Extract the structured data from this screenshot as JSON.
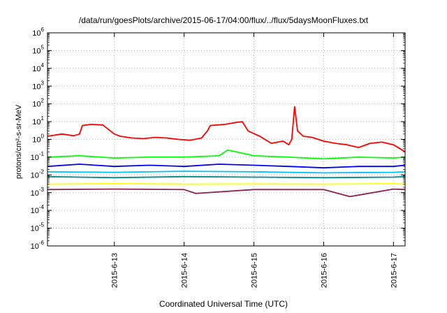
{
  "chart_data": {
    "type": "line",
    "title": "/data/run/goesPlots/archive/2015-06-17/04:00/flux/../flux/5daysMoonFluxes.txt",
    "xlabel": "Coordinated Universal Time (UTC)",
    "ylabel": "protons/cm²-s-sr-MeV",
    "y_scale": "log",
    "ylim": [
      1e-06,
      1000000.0
    ],
    "xlim": [
      "2015-06-12T01:00",
      "2015-06-17T04:00"
    ],
    "x_ticks": [
      "2015-6-13",
      "2015-6-14",
      "2015-6-15",
      "2015-6-16",
      "2015-6-17"
    ],
    "y_ticks": [
      "1e-6",
      "1e-5",
      "1e-4",
      "1e-3",
      "1e-2",
      "1e-1",
      "1e0",
      "1e1",
      "1e2",
      "1e3",
      "1e4",
      "1e5",
      "1e6"
    ],
    "grid": true,
    "series": [
      {
        "color": "#ff0000",
        "x": [
          "2015-06-12T01:00",
          "2015-06-12T06:00",
          "2015-06-12T10:00",
          "2015-06-12T12:00",
          "2015-06-12T13:00",
          "2015-06-12T16:00",
          "2015-06-12T20:00",
          "2015-06-13T00:00",
          "2015-06-13T02:00",
          "2015-06-13T06:00",
          "2015-06-13T10:00",
          "2015-06-13T14:00",
          "2015-06-13T18:00",
          "2015-06-13T22:00",
          "2015-06-14T02:00",
          "2015-06-14T06:00",
          "2015-06-14T08:00",
          "2015-06-14T09:00",
          "2015-06-14T14:00",
          "2015-06-14T18:00",
          "2015-06-14T20:00",
          "2015-06-14T22:00",
          "2015-06-15T02:00",
          "2015-06-15T06:00",
          "2015-06-15T10:00",
          "2015-06-15T12:00",
          "2015-06-15T13:00",
          "2015-06-15T14:00",
          "2015-06-15T15:00",
          "2015-06-15T17:00",
          "2015-06-15T20:00",
          "2015-06-16T00:00",
          "2015-06-16T04:00",
          "2015-06-16T08:00",
          "2015-06-16T12:00",
          "2015-06-16T16:00",
          "2015-06-16T20:00",
          "2015-06-17T00:00",
          "2015-06-17T04:00"
        ],
        "y": [
          1.5,
          2,
          1.6,
          2,
          6,
          7,
          6.5,
          2,
          1.5,
          1.2,
          1.1,
          1.3,
          1.2,
          1,
          0.9,
          1.2,
          3,
          6,
          7,
          9,
          10,
          3,
          1.5,
          0.6,
          0.8,
          0.5,
          1,
          70,
          3,
          1.5,
          1.3,
          0.8,
          0.6,
          0.5,
          0.35,
          0.6,
          0.7,
          0.5,
          0.2
        ]
      },
      {
        "color": "#00ff00",
        "x": [
          "2015-06-12T01:00",
          "2015-06-12T12:00",
          "2015-06-13T00:00",
          "2015-06-13T12:00",
          "2015-06-14T00:00",
          "2015-06-14T12:00",
          "2015-06-14T15:00",
          "2015-06-15T00:00",
          "2015-06-15T12:00",
          "2015-06-16T00:00",
          "2015-06-16T12:00",
          "2015-06-17T00:00",
          "2015-06-17T04:00"
        ],
        "y": [
          0.1,
          0.12,
          0.09,
          0.1,
          0.1,
          0.12,
          0.25,
          0.12,
          0.1,
          0.08,
          0.1,
          0.09,
          0.1
        ]
      },
      {
        "color": "#0000ff",
        "x": [
          "2015-06-12T01:00",
          "2015-06-12T12:00",
          "2015-06-13T00:00",
          "2015-06-13T12:00",
          "2015-06-14T00:00",
          "2015-06-14T12:00",
          "2015-06-15T00:00",
          "2015-06-15T12:00",
          "2015-06-16T00:00",
          "2015-06-16T12:00",
          "2015-06-17T00:00",
          "2015-06-17T04:00"
        ],
        "y": [
          0.03,
          0.04,
          0.03,
          0.035,
          0.03,
          0.04,
          0.035,
          0.03,
          0.025,
          0.03,
          0.03,
          0.035
        ]
      },
      {
        "color": "#00bfff",
        "x": [
          "2015-06-12T01:00",
          "2015-06-13T00:00",
          "2015-06-14T00:00",
          "2015-06-15T00:00",
          "2015-06-16T00:00",
          "2015-06-17T00:00",
          "2015-06-17T04:00"
        ],
        "y": [
          0.015,
          0.014,
          0.016,
          0.015,
          0.013,
          0.014,
          0.015
        ]
      },
      {
        "color": "#008b8b",
        "x": [
          "2015-06-12T01:00",
          "2015-06-13T00:00",
          "2015-06-14T00:00",
          "2015-06-15T00:00",
          "2015-06-16T00:00",
          "2015-06-17T00:00",
          "2015-06-17T04:00"
        ],
        "y": [
          0.008,
          0.007,
          0.008,
          0.0075,
          0.007,
          0.0075,
          0.008
        ]
      },
      {
        "color": "#ffff00",
        "x": [
          "2015-06-12T01:00",
          "2015-06-13T00:00",
          "2015-06-14T00:00",
          "2015-06-15T00:00",
          "2015-06-16T00:00",
          "2015-06-17T00:00",
          "2015-06-17T04:00"
        ],
        "y": [
          0.003,
          0.0032,
          0.003,
          0.0031,
          0.003,
          0.0032,
          0.003
        ]
      },
      {
        "color": "#8b2252",
        "x": [
          "2015-06-12T01:00",
          "2015-06-13T00:00",
          "2015-06-14T00:00",
          "2015-06-14T04:00",
          "2015-06-15T00:00",
          "2015-06-16T00:00",
          "2015-06-16T09:00",
          "2015-06-17T00:00",
          "2015-06-17T04:00"
        ],
        "y": [
          0.0015,
          0.0016,
          0.0015,
          0.0009,
          0.0015,
          0.0015,
          0.0006,
          0.0016,
          0.0015
        ]
      }
    ]
  }
}
